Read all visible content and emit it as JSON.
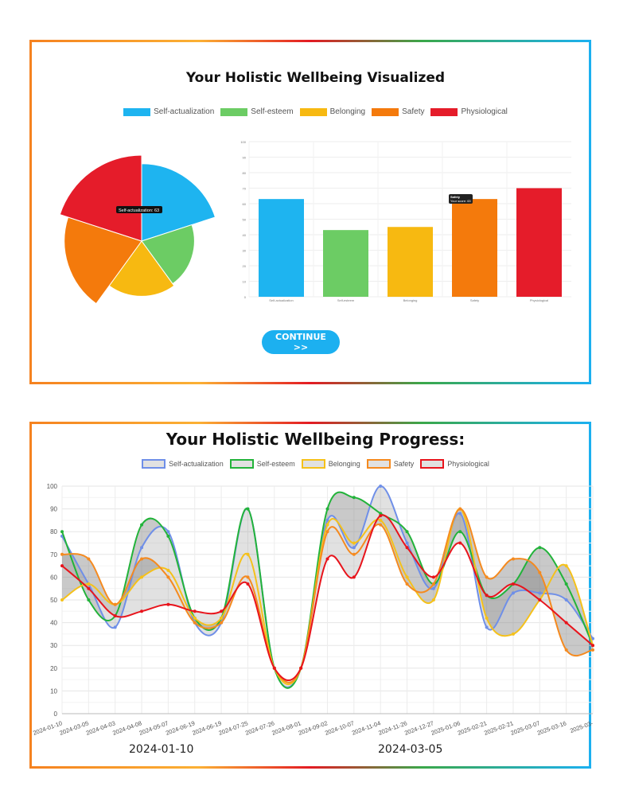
{
  "colors": {
    "Self-actualization": "#1eb4f0",
    "Self-esteem": "#6ccc64",
    "Belonging": "#f7b911",
    "Safety": "#f47a0c",
    "Physiological": "#e51c2a"
  },
  "top": {
    "title": "Your Holistic Wellbeing Visualized",
    "continue_label": "CONTINUE >>",
    "pie_tooltip": "Self-actualization: 63",
    "bar_tooltip_title": "Safety",
    "bar_tooltip_body": "Your score: 63"
  },
  "bottom": {
    "title": "Your Holistic Wellbeing Progress:",
    "label_left": "2024-01-10",
    "label_right": "2024-03-05"
  },
  "chart_data": [
    {
      "type": "pie",
      "subtype": "polar-area",
      "categories": [
        "Self-actualization",
        "Self-esteem",
        "Belonging",
        "Safety",
        "Physiological"
      ],
      "values": [
        63,
        43,
        45,
        63,
        70
      ],
      "legend": "top"
    },
    {
      "type": "bar",
      "categories": [
        "Self-actualization",
        "Self-esteem",
        "Belonging",
        "Safety",
        "Physiological"
      ],
      "values": [
        63,
        43,
        45,
        63,
        70
      ],
      "ylim": [
        0,
        100
      ],
      "yticks": [
        0,
        10,
        20,
        30,
        40,
        50,
        60,
        70,
        80,
        90,
        100
      ],
      "grid": true
    },
    {
      "type": "line",
      "smooth": true,
      "fill": "between",
      "ylim": [
        0,
        100
      ],
      "yticks": [
        0,
        10,
        20,
        30,
        40,
        50,
        60,
        70,
        80,
        90,
        100
      ],
      "grid": true,
      "legend": "top",
      "x": [
        "2024-01-10",
        "2024-03-05",
        "2024-04-03",
        "2024-04-08",
        "2024-05-07",
        "2024-06-19",
        "2024-06-19",
        "2024-07-25",
        "2024-07-26",
        "2024-08-01",
        "2024-09-02",
        "2024-10-07",
        "2024-11-04",
        "2024-11-26",
        "2024-12-27",
        "2025-01-06",
        "2025-02-21",
        "2025-02-21",
        "2025-03-07",
        "2025-03-16",
        "2025-03-"
      ],
      "series": [
        {
          "name": "Self-actualization",
          "color": "#6f8fe8",
          "values": [
            78,
            57,
            38,
            73,
            80,
            40,
            40,
            90,
            20,
            20,
            85,
            73,
            100,
            75,
            55,
            88,
            38,
            53,
            53,
            50,
            33
          ]
        },
        {
          "name": "Self-esteem",
          "color": "#22b33a",
          "values": [
            80,
            50,
            43,
            83,
            78,
            42,
            42,
            90,
            20,
            20,
            90,
            95,
            88,
            80,
            57,
            80,
            52,
            57,
            73,
            57,
            30
          ]
        },
        {
          "name": "Belonging",
          "color": "#f5c11a",
          "values": [
            50,
            57,
            48,
            60,
            63,
            42,
            42,
            70,
            20,
            20,
            83,
            75,
            85,
            60,
            50,
            90,
            42,
            35,
            50,
            65,
            30
          ]
        },
        {
          "name": "Safety",
          "color": "#f58a1f",
          "values": [
            70,
            68,
            48,
            68,
            60,
            40,
            40,
            60,
            20,
            20,
            80,
            70,
            83,
            57,
            57,
            90,
            60,
            68,
            62,
            28,
            28
          ]
        },
        {
          "name": "Physiological",
          "color": "#e8141c",
          "values": [
            65,
            55,
            43,
            45,
            48,
            45,
            45,
            57,
            20,
            20,
            68,
            60,
            87,
            73,
            60,
            75,
            52,
            57,
            50,
            40,
            30
          ]
        }
      ]
    }
  ]
}
